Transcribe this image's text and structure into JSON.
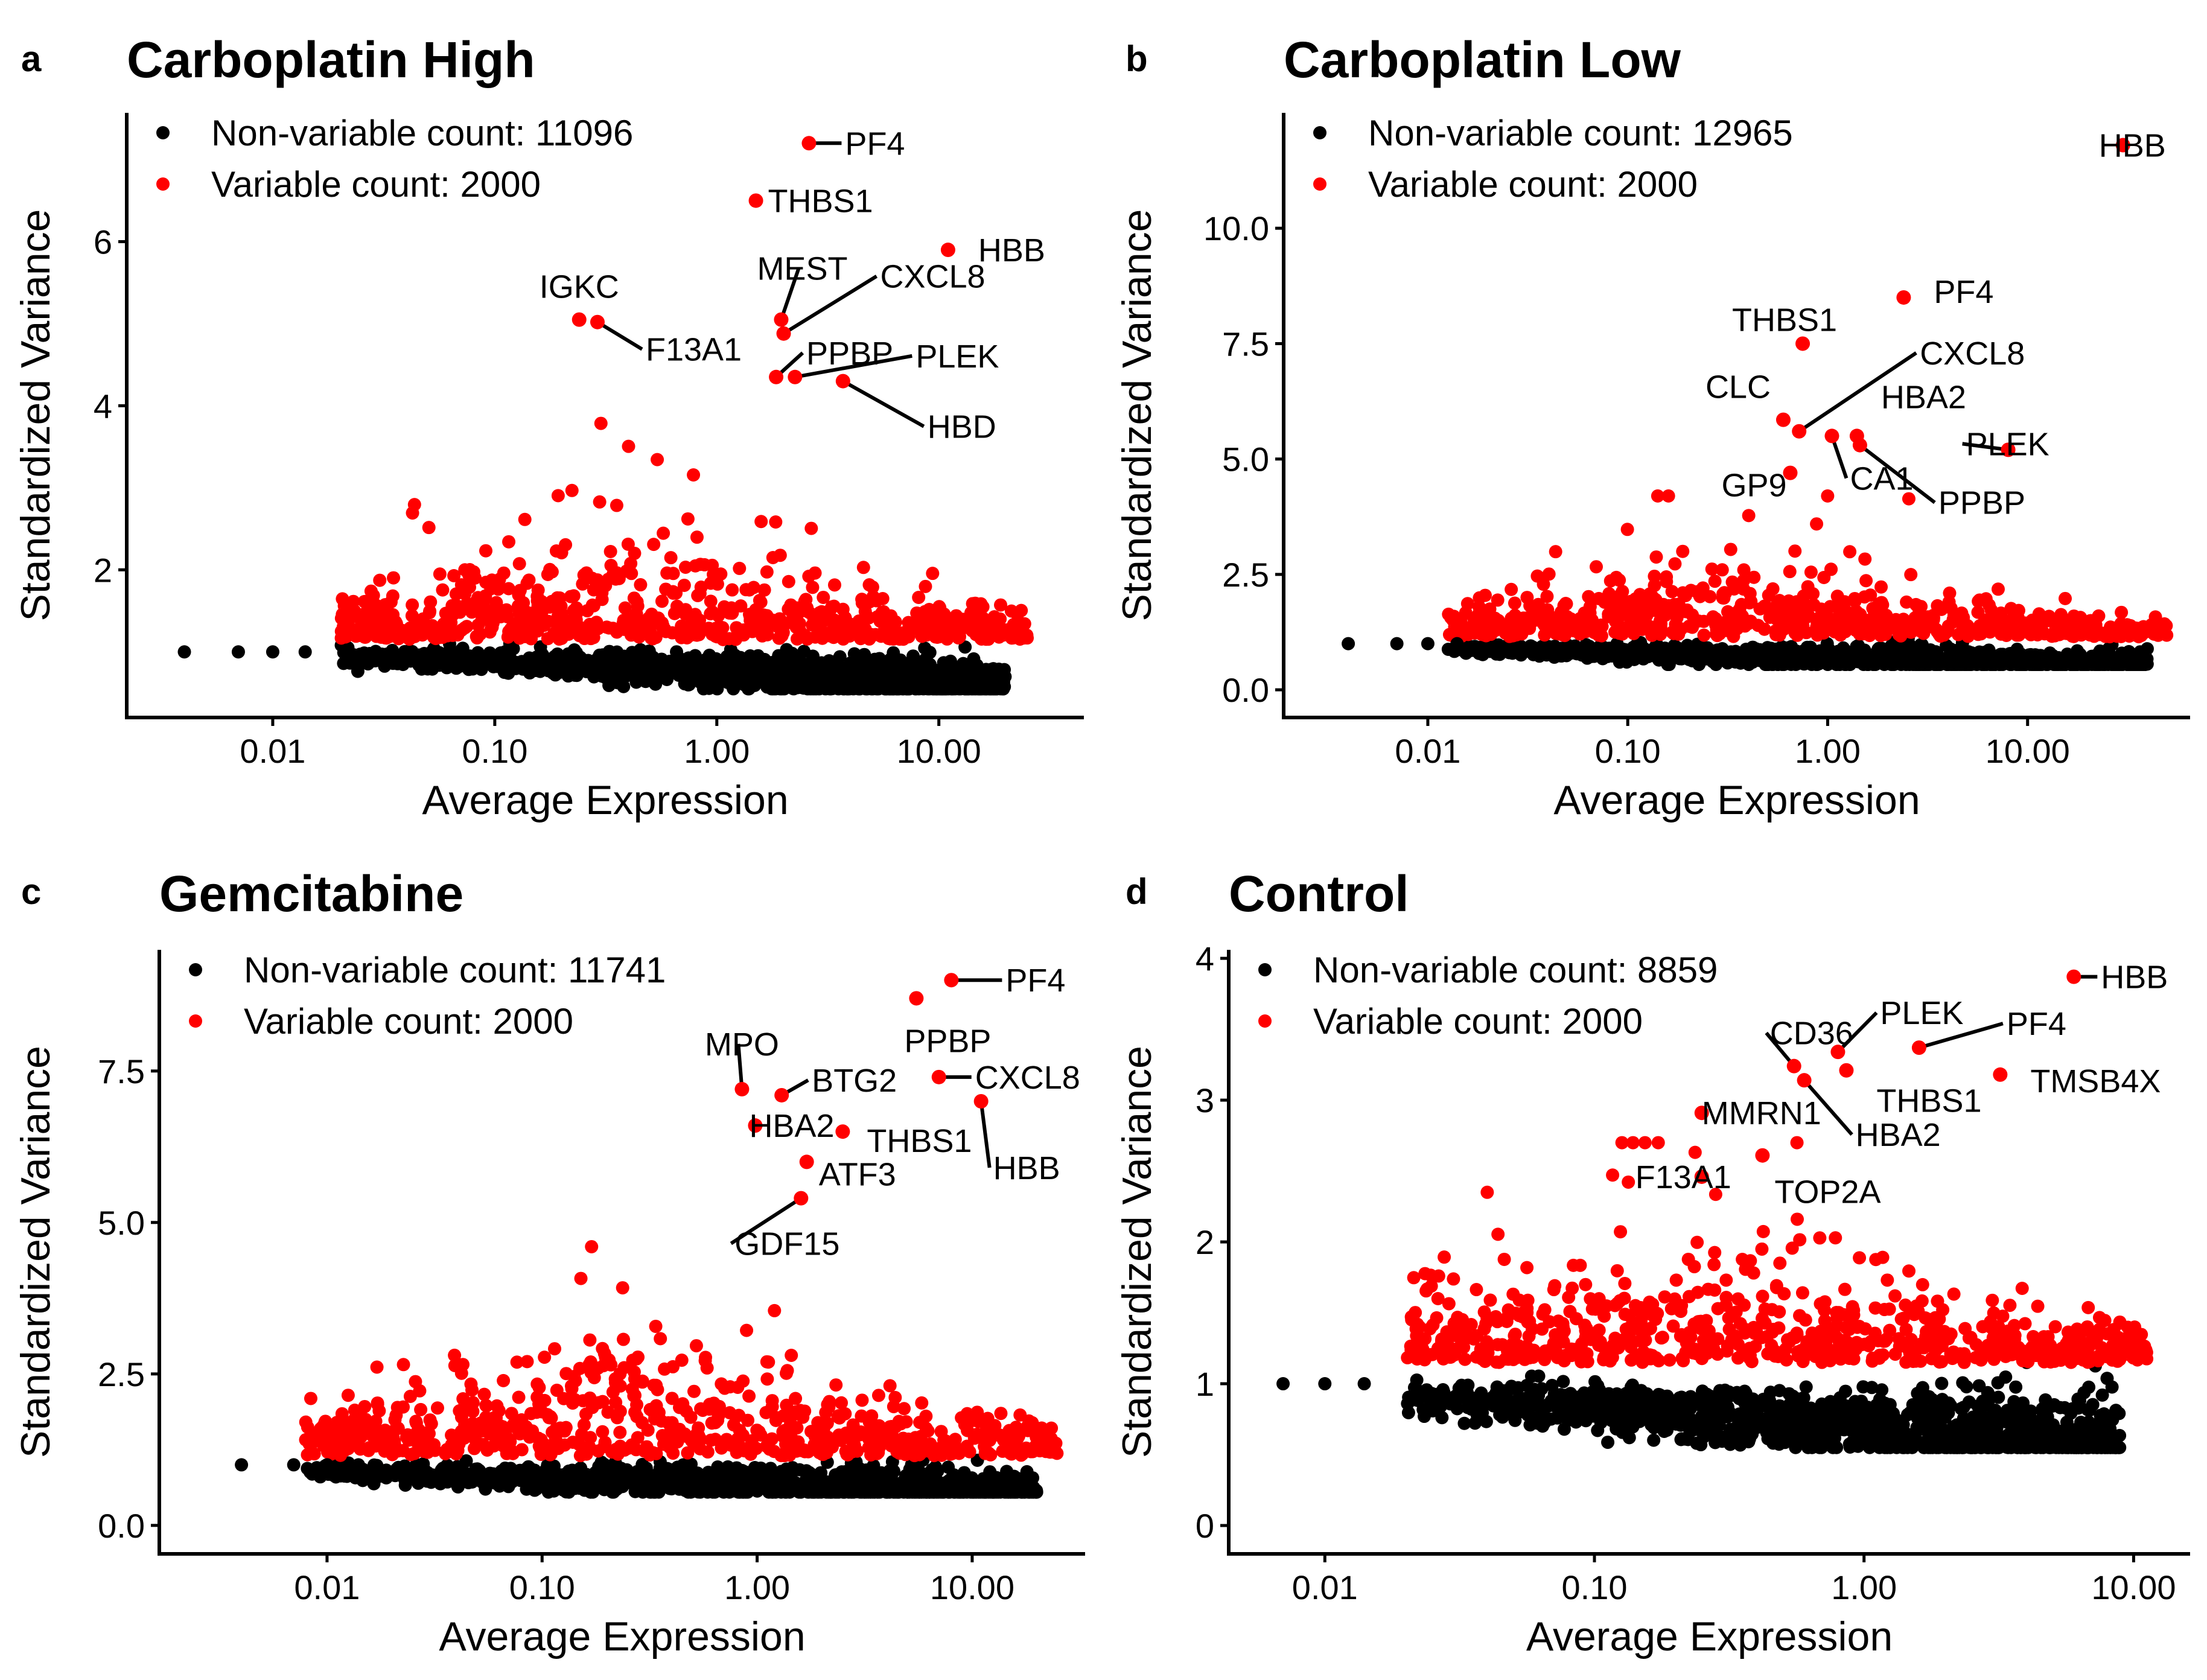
{
  "colors": {
    "variable": "#ff0000",
    "non_variable": "#000000",
    "axis": "#000000"
  },
  "chart_data": [
    {
      "type": "scatter",
      "panel_letter": "a",
      "title": "Carboplatin High",
      "xlabel": "Average Expression",
      "ylabel": "Standardized Variance",
      "x_scale": "log10",
      "xlim": [
        0.0022,
        45
      ],
      "ylim": [
        0.2,
        7.57
      ],
      "xticks": [
        0.01,
        0.1,
        1,
        10
      ],
      "xtick_labels": [
        "0.01",
        "0.10",
        "1.00",
        "10.00"
      ],
      "yticks": [
        2,
        4,
        6
      ],
      "ytick_labels": [
        "2",
        "4",
        "6"
      ],
      "legend": {
        "position": "top-left",
        "entries": [
          "Non-variable count: 11096",
          "Variable count: 2000"
        ]
      },
      "non_variable_count": 11096,
      "variable_count": 2000,
      "labeled_genes": [
        {
          "gene": "PF4",
          "x": 2.6,
          "y": 7.2
        },
        {
          "gene": "THBS1",
          "x": 1.5,
          "y": 6.5
        },
        {
          "gene": "HBB",
          "x": 11,
          "y": 5.9
        },
        {
          "gene": "IGKC",
          "x": 0.24,
          "y": 5.05
        },
        {
          "gene": "F13A1",
          "x": 0.29,
          "y": 5.02
        },
        {
          "gene": "MEST",
          "x": 1.95,
          "y": 5.05
        },
        {
          "gene": "CXCL8",
          "x": 2.0,
          "y": 4.88
        },
        {
          "gene": "PPBP",
          "x": 1.85,
          "y": 4.35
        },
        {
          "gene": "PLEK",
          "x": 2.25,
          "y": 4.35
        },
        {
          "gene": "HBD",
          "x": 3.7,
          "y": 4.3
        }
      ]
    },
    {
      "type": "scatter",
      "panel_letter": "b",
      "title": "Carboplatin Low",
      "xlabel": "Average Expression",
      "ylabel": "Standardized Variance",
      "x_scale": "log10",
      "xlim": [
        0.0019,
        65
      ],
      "ylim": [
        -0.6,
        12.5
      ],
      "xticks": [
        0.01,
        0.1,
        1,
        10
      ],
      "xtick_labels": [
        "0.01",
        "0.10",
        "1.00",
        "10.00"
      ],
      "yticks": [
        0,
        2.5,
        5,
        7.5,
        10
      ],
      "ytick_labels": [
        "0.0",
        "2.5",
        "5.0",
        "7.5",
        "10.0"
      ],
      "legend": {
        "position": "top-left",
        "entries": [
          "Non-variable count: 12965",
          "Variable count: 2000"
        ]
      },
      "non_variable_count": 12965,
      "variable_count": 2000,
      "labeled_genes": [
        {
          "gene": "HBB",
          "x": 30,
          "y": 11.8
        },
        {
          "gene": "PF4",
          "x": 2.4,
          "y": 8.5
        },
        {
          "gene": "THBS1",
          "x": 0.75,
          "y": 7.5
        },
        {
          "gene": "CXCL8",
          "x": 0.72,
          "y": 5.6
        },
        {
          "gene": "CLC",
          "x": 0.6,
          "y": 5.85
        },
        {
          "gene": "HBA2",
          "x": 1.4,
          "y": 5.5
        },
        {
          "gene": "PLEK",
          "x": 8.0,
          "y": 5.2
        },
        {
          "gene": "GP9",
          "x": 0.65,
          "y": 4.7
        },
        {
          "gene": "CA1",
          "x": 1.05,
          "y": 5.5
        },
        {
          "gene": "PPBP",
          "x": 1.45,
          "y": 5.3
        }
      ]
    },
    {
      "type": "scatter",
      "panel_letter": "c",
      "title": "Gemcitabine",
      "xlabel": "Average Expression",
      "ylabel": "Standardized Variance",
      "x_scale": "log10",
      "xlim": [
        0.00166,
        33.5
      ],
      "ylim": [
        -0.47,
        9.5
      ],
      "xticks": [
        0.01,
        0.1,
        1,
        10
      ],
      "xtick_labels": [
        "0.01",
        "0.10",
        "1.00",
        "10.00"
      ],
      "yticks": [
        0,
        2.5,
        5,
        7.5
      ],
      "ytick_labels": [
        "0.0",
        "2.5",
        "5.0",
        "7.5"
      ],
      "legend": {
        "position": "top-left",
        "entries": [
          "Non-variable count: 11741",
          "Variable count: 2000"
        ]
      },
      "non_variable_count": 11741,
      "variable_count": 2000,
      "labeled_genes": [
        {
          "gene": "PF4",
          "x": 8.0,
          "y": 9.0
        },
        {
          "gene": "PPBP",
          "x": 5.5,
          "y": 8.7
        },
        {
          "gene": "MPO",
          "x": 0.85,
          "y": 7.2
        },
        {
          "gene": "BTG2",
          "x": 1.3,
          "y": 7.1
        },
        {
          "gene": "CXCL8",
          "x": 7.0,
          "y": 7.4
        },
        {
          "gene": "HBB",
          "x": 11,
          "y": 7.0
        },
        {
          "gene": "HBA2",
          "x": 0.98,
          "y": 6.6
        },
        {
          "gene": "THBS1",
          "x": 2.5,
          "y": 6.5
        },
        {
          "gene": "ATF3",
          "x": 1.7,
          "y": 6.0
        },
        {
          "gene": "GDF15",
          "x": 1.6,
          "y": 5.4
        }
      ]
    },
    {
      "type": "scatter",
      "panel_letter": "d",
      "title": "Control",
      "xlabel": "Average Expression",
      "ylabel": "Standardized Variance",
      "x_scale": "log10",
      "xlim": [
        0.0044,
        16.2
      ],
      "ylim": [
        -0.2,
        4.06
      ],
      "xticks": [
        0.01,
        0.1,
        1,
        10
      ],
      "xtick_labels": [
        "0.01",
        "0.10",
        "1.00",
        "10.00"
      ],
      "yticks": [
        0,
        1,
        2,
        3,
        4
      ],
      "ytick_labels": [
        "0",
        "1",
        "2",
        "3",
        "4"
      ],
      "legend": {
        "position": "top-left",
        "entries": [
          "Non-variable count: 8859",
          "Variable count: 2000"
        ]
      },
      "non_variable_count": 8859,
      "variable_count": 2000,
      "labeled_genes": [
        {
          "gene": "HBB",
          "x": 6.0,
          "y": 3.87
        },
        {
          "gene": "CD36",
          "x": 0.55,
          "y": 3.24
        },
        {
          "gene": "PLEK",
          "x": 0.8,
          "y": 3.34
        },
        {
          "gene": "PF4",
          "x": 1.6,
          "y": 3.37
        },
        {
          "gene": "THBS1",
          "x": 0.86,
          "y": 3.21
        },
        {
          "gene": "TMSB4X",
          "x": 3.2,
          "y": 3.18
        },
        {
          "gene": "MMRN1",
          "x": 0.25,
          "y": 2.91
        },
        {
          "gene": "HBA2",
          "x": 0.6,
          "y": 3.14
        },
        {
          "gene": "F13A1",
          "x": 0.25,
          "y": 2.46
        },
        {
          "gene": "TOP2A",
          "x": 0.42,
          "y": 2.61
        }
      ]
    }
  ]
}
